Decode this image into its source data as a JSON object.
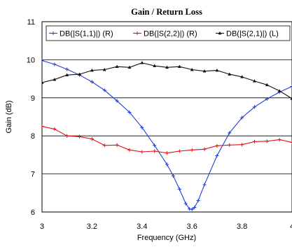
{
  "chart_data": {
    "type": "line",
    "title": "Gain / Return Loss",
    "xlabel": "Frequency (GHz)",
    "ylabel": "Gain (dB)",
    "xlim": [
      3,
      4
    ],
    "ylim": [
      6,
      11
    ],
    "x_ticks": [
      "3",
      "3.2",
      "3.4",
      "3.6",
      "3.8",
      "4"
    ],
    "y_ticks": [
      "6",
      "7",
      "8",
      "9",
      "10",
      "11"
    ],
    "grid": "horizontal",
    "legend_position": "top",
    "series": [
      {
        "name": "DB(|S(1,1)|) (R)",
        "color": "#1f3fd8",
        "marker": "plus",
        "points": [
          [
            3.0,
            9.98
          ],
          [
            3.05,
            9.88
          ],
          [
            3.1,
            9.75
          ],
          [
            3.15,
            9.6
          ],
          [
            3.2,
            9.42
          ],
          [
            3.25,
            9.2
          ],
          [
            3.3,
            8.92
          ],
          [
            3.35,
            8.62
          ],
          [
            3.4,
            8.22
          ],
          [
            3.45,
            7.75
          ],
          [
            3.5,
            7.25
          ],
          [
            3.525,
            6.95
          ],
          [
            3.55,
            6.6
          ],
          [
            3.575,
            6.22
          ],
          [
            3.59,
            6.08
          ],
          [
            3.6,
            6.07
          ],
          [
            3.61,
            6.12
          ],
          [
            3.625,
            6.3
          ],
          [
            3.65,
            6.72
          ],
          [
            3.7,
            7.48
          ],
          [
            3.75,
            8.08
          ],
          [
            3.8,
            8.48
          ],
          [
            3.85,
            8.76
          ],
          [
            3.9,
            8.97
          ],
          [
            3.95,
            9.15
          ],
          [
            4.0,
            9.3
          ]
        ]
      },
      {
        "name": "DB(|S(2,2)|) (R)",
        "color": "#e01010",
        "marker": "plus",
        "points": [
          [
            3.0,
            8.25
          ],
          [
            3.05,
            8.18
          ],
          [
            3.1,
            8.0
          ],
          [
            3.15,
            7.98
          ],
          [
            3.2,
            7.92
          ],
          [
            3.25,
            7.75
          ],
          [
            3.3,
            7.76
          ],
          [
            3.35,
            7.63
          ],
          [
            3.4,
            7.58
          ],
          [
            3.45,
            7.6
          ],
          [
            3.5,
            7.55
          ],
          [
            3.55,
            7.6
          ],
          [
            3.6,
            7.63
          ],
          [
            3.65,
            7.65
          ],
          [
            3.7,
            7.74
          ],
          [
            3.75,
            7.76
          ],
          [
            3.8,
            7.77
          ],
          [
            3.85,
            7.85
          ],
          [
            3.9,
            7.86
          ],
          [
            3.95,
            7.9
          ],
          [
            4.0,
            7.83
          ]
        ]
      },
      {
        "name": "DB(|S(2,1)|) (L)",
        "color": "#111111",
        "marker": "triangle",
        "points": [
          [
            3.0,
            9.4
          ],
          [
            3.05,
            9.48
          ],
          [
            3.1,
            9.6
          ],
          [
            3.15,
            9.62
          ],
          [
            3.2,
            9.72
          ],
          [
            3.25,
            9.74
          ],
          [
            3.3,
            9.82
          ],
          [
            3.35,
            9.8
          ],
          [
            3.4,
            9.92
          ],
          [
            3.45,
            9.84
          ],
          [
            3.5,
            9.8
          ],
          [
            3.55,
            9.82
          ],
          [
            3.6,
            9.74
          ],
          [
            3.65,
            9.7
          ],
          [
            3.7,
            9.72
          ],
          [
            3.75,
            9.62
          ],
          [
            3.8,
            9.55
          ],
          [
            3.85,
            9.44
          ],
          [
            3.9,
            9.34
          ],
          [
            3.95,
            9.18
          ],
          [
            4.0,
            8.98
          ]
        ]
      }
    ]
  }
}
